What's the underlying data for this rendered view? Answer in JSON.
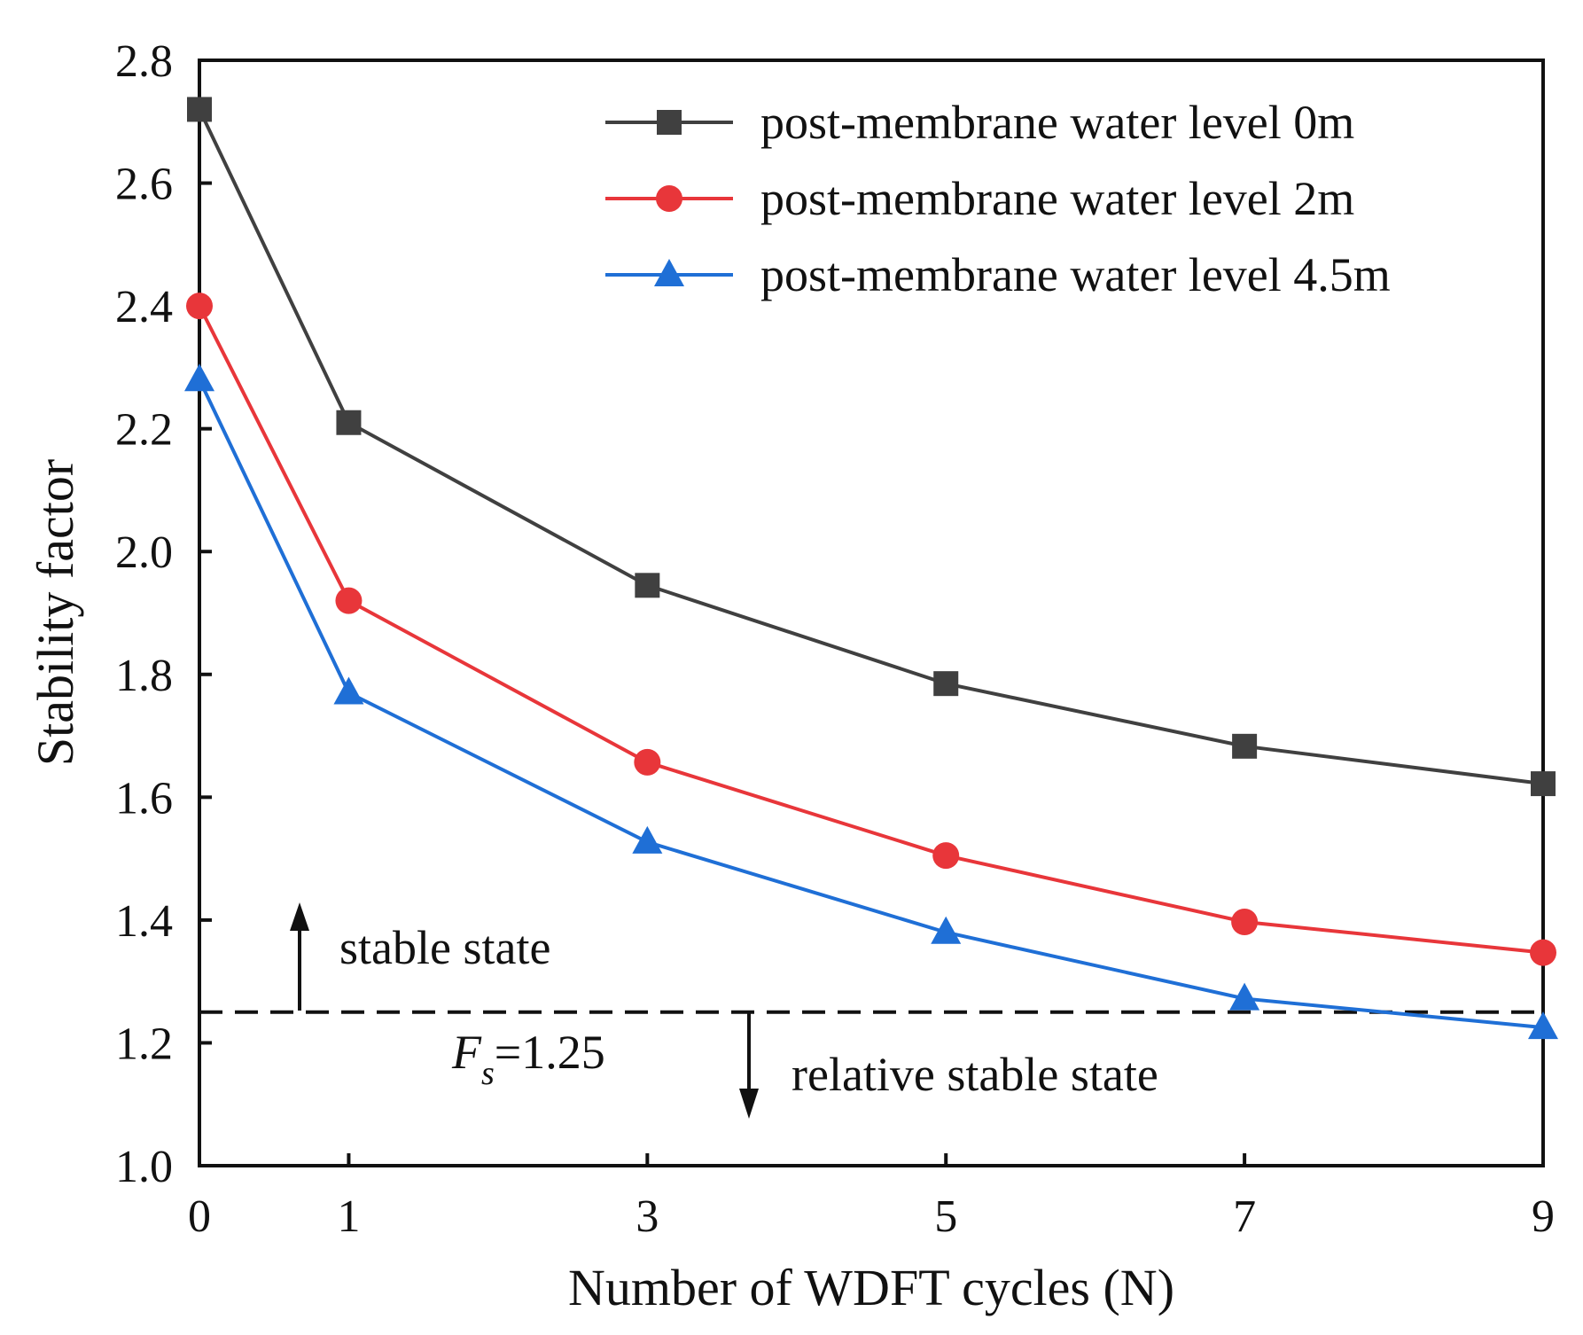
{
  "chart_data": {
    "type": "line",
    "title": "",
    "xlabel": "Number of WDFT  cycles (N)",
    "ylabel": "Stability factor",
    "x": [
      0,
      1,
      3,
      5,
      7,
      9
    ],
    "xlim": [
      0,
      9
    ],
    "ylim": [
      1.0,
      2.8
    ],
    "x_ticks": [
      0,
      1,
      3,
      5,
      7,
      9
    ],
    "y_ticks": [
      1.0,
      1.2,
      1.4,
      1.6,
      1.8,
      2.0,
      2.2,
      2.4,
      2.6,
      2.8
    ],
    "x_tick_labels": [
      "0",
      "1",
      "3",
      "5",
      "7",
      "9"
    ],
    "y_tick_labels": [
      "1.0",
      "1.2",
      "1.4",
      "1.6",
      "1.8",
      "2.0",
      "2.2",
      "2.4",
      "2.6",
      "2.8"
    ],
    "grid": false,
    "legend_position": "top-right",
    "series": [
      {
        "name": "post-membrane water level 0m",
        "color": "#404040",
        "marker": "square",
        "values": [
          2.72,
          2.21,
          1.945,
          1.785,
          1.683,
          1.622
        ]
      },
      {
        "name": "post-membrane water level 2m",
        "color": "#e8363a",
        "marker": "circle",
        "values": [
          2.4,
          1.92,
          1.657,
          1.505,
          1.397,
          1.347
        ]
      },
      {
        "name": "post-membrane water level 4.5m",
        "color": "#1f6fd6",
        "marker": "triangle",
        "values": [
          2.28,
          1.77,
          1.527,
          1.38,
          1.272,
          1.225
        ]
      }
    ],
    "threshold": {
      "value": 1.25,
      "label_symbol": "F",
      "label_subscript": "s",
      "label_value": "=1.25"
    },
    "annotations": {
      "above": "stable state",
      "below": "relative stable state"
    }
  }
}
